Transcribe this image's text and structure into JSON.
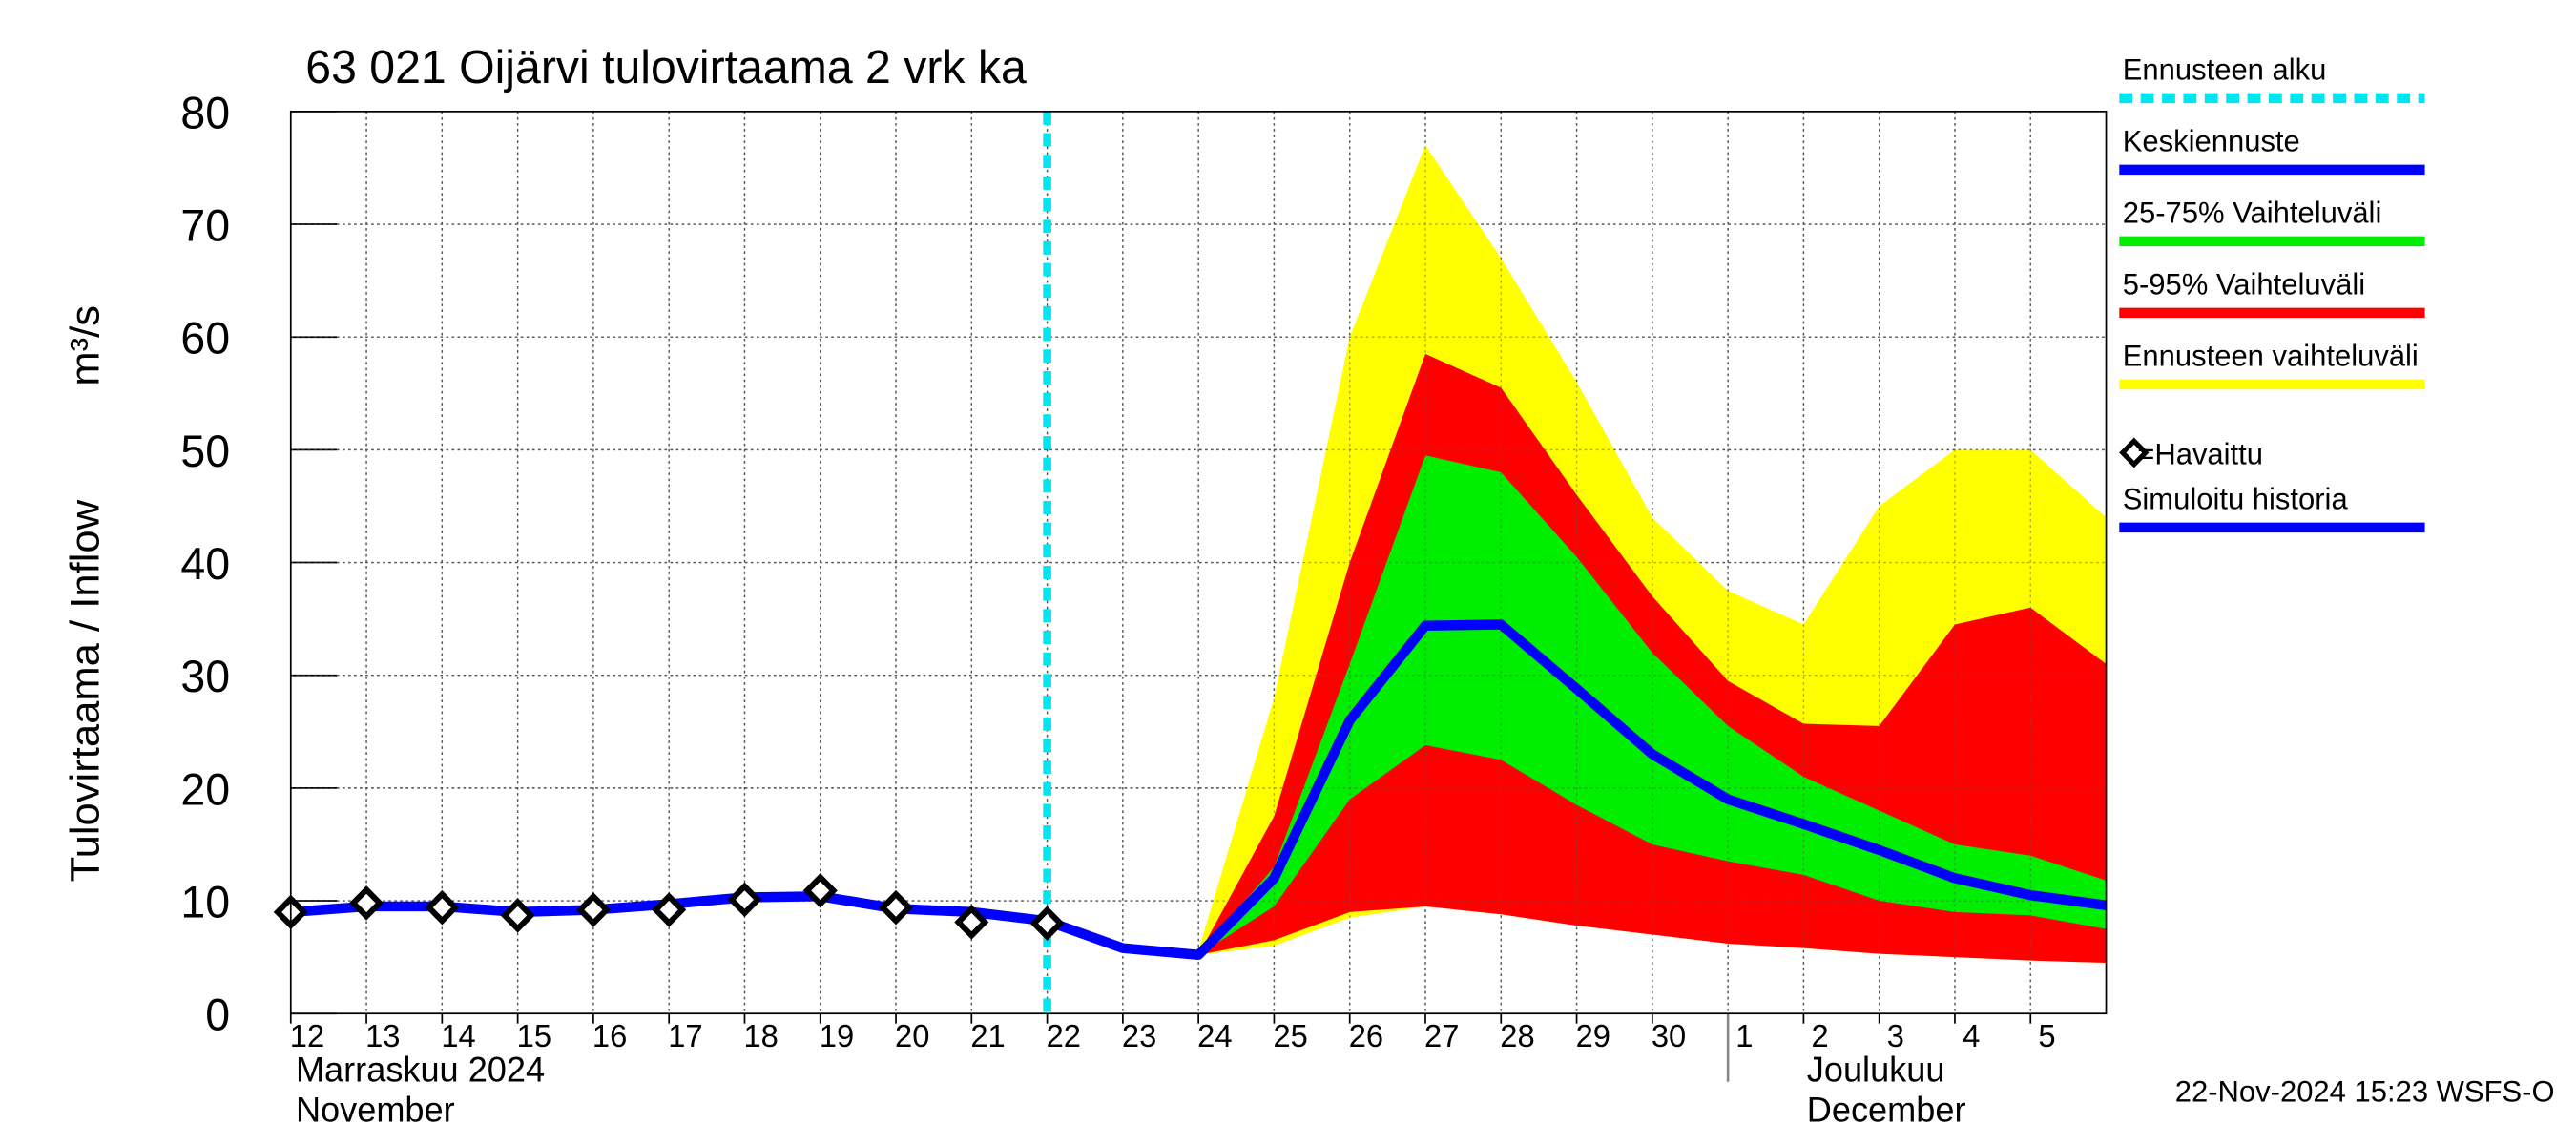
{
  "chart_data": {
    "type": "forecast",
    "title": "63 021 Oijärvi tulovirtaama 2 vrk ka",
    "y_label": "Tulovirtaama / Inflow",
    "y_unit": "m³/s",
    "x": [
      "2024-11-12",
      "2024-11-13",
      "2024-11-14",
      "2024-11-15",
      "2024-11-16",
      "2024-11-17",
      "2024-11-18",
      "2024-11-19",
      "2024-11-20",
      "2024-11-21",
      "2024-11-22",
      "2024-11-23",
      "2024-11-24",
      "2024-11-25",
      "2024-11-26",
      "2024-11-27",
      "2024-11-28",
      "2024-11-29",
      "2024-11-30",
      "2024-12-01",
      "2024-12-02",
      "2024-12-03",
      "2024-12-04",
      "2024-12-05",
      "2024-12-06"
    ],
    "xlim": [
      "2024-11-12",
      "2024-12-06"
    ],
    "xticks": [
      {
        "value": "2024-11-12",
        "label": "12"
      },
      {
        "value": "2024-11-13",
        "label": "13"
      },
      {
        "value": "2024-11-14",
        "label": "14"
      },
      {
        "value": "2024-11-15",
        "label": "15"
      },
      {
        "value": "2024-11-16",
        "label": "16"
      },
      {
        "value": "2024-11-17",
        "label": "17"
      },
      {
        "value": "2024-11-18",
        "label": "18"
      },
      {
        "value": "2024-11-19",
        "label": "19"
      },
      {
        "value": "2024-11-20",
        "label": "20"
      },
      {
        "value": "2024-11-21",
        "label": "21"
      },
      {
        "value": "2024-11-22",
        "label": "22"
      },
      {
        "value": "2024-11-23",
        "label": "23"
      },
      {
        "value": "2024-11-24",
        "label": "24"
      },
      {
        "value": "2024-11-25",
        "label": "25"
      },
      {
        "value": "2024-11-26",
        "label": "26"
      },
      {
        "value": "2024-11-27",
        "label": "27"
      },
      {
        "value": "2024-11-28",
        "label": "28"
      },
      {
        "value": "2024-11-29",
        "label": "29"
      },
      {
        "value": "2024-11-30",
        "label": "30"
      },
      {
        "value": "2024-12-01",
        "label": "1"
      },
      {
        "value": "2024-12-02",
        "label": "2"
      },
      {
        "value": "2024-12-03",
        "label": "3"
      },
      {
        "value": "2024-12-04",
        "label": "4"
      },
      {
        "value": "2024-12-05",
        "label": "5"
      }
    ],
    "months": [
      {
        "value": "2024-11-12",
        "label": "Marraskuu 2024",
        "label_en": "November"
      },
      {
        "value": "2024-12-01",
        "label": "Joulukuu",
        "label_en": "December"
      }
    ],
    "ylim": [
      0,
      80
    ],
    "yticks": [
      0,
      10,
      20,
      30,
      40,
      50,
      60,
      70,
      80
    ],
    "grid": true,
    "forecast_start": {
      "name": "Ennusteen alku",
      "x": "2024-11-22",
      "color": "#00e5ee"
    },
    "bands": [
      {
        "name": "Ennusteen vaihteluväli",
        "color": "#ffff00",
        "upper": [
          null,
          null,
          null,
          null,
          null,
          null,
          null,
          null,
          null,
          null,
          8.2,
          6.2,
          5.6,
          28,
          60,
          77,
          67,
          56,
          44,
          37.5,
          34.5,
          45,
          50,
          50,
          44
        ],
        "lower": [
          null,
          null,
          null,
          null,
          null,
          null,
          null,
          null,
          null,
          null,
          8.2,
          5.8,
          5.2,
          6,
          8.5,
          9.5,
          8.8,
          7.8,
          7,
          6.2,
          5.8,
          5.3,
          5,
          4.7,
          4.5
        ]
      },
      {
        "name": "5-95% Vaihteluväli",
        "color": "#ff0000",
        "upper": [
          null,
          null,
          null,
          null,
          null,
          null,
          null,
          null,
          null,
          null,
          8.2,
          5.8,
          5.2,
          17.5,
          40,
          58.5,
          55.5,
          46,
          37,
          29.5,
          25.7,
          25.5,
          34.5,
          36,
          31
        ],
        "lower": [
          null,
          null,
          null,
          null,
          null,
          null,
          null,
          null,
          null,
          null,
          8.2,
          5.8,
          5.2,
          6.5,
          9,
          9.5,
          8.8,
          7.8,
          7,
          6.2,
          5.8,
          5.3,
          5,
          4.7,
          4.5
        ]
      },
      {
        "name": "25-75% Vaihteluväli",
        "color": "#00ee00",
        "upper": [
          null,
          null,
          null,
          null,
          null,
          null,
          null,
          null,
          null,
          null,
          8.2,
          5.8,
          5.2,
          13,
          31,
          49.5,
          48,
          40.5,
          32,
          25.5,
          21,
          18,
          15,
          14,
          11.8
        ],
        "lower": [
          null,
          null,
          null,
          null,
          null,
          null,
          null,
          null,
          null,
          null,
          8.2,
          5.8,
          5.2,
          9.5,
          19,
          23.8,
          22.5,
          18.5,
          15,
          13.5,
          12.3,
          10,
          9,
          8.7,
          7.5
        ]
      }
    ],
    "series": [
      {
        "name": "Simuloitu historia",
        "color": "#0000ff",
        "values": [
          9,
          9.5,
          9.5,
          9,
          9.2,
          9.7,
          10.3,
          10.4,
          9.3,
          9,
          8.2,
          null,
          null,
          null,
          null,
          null,
          null,
          null,
          null,
          null,
          null,
          null,
          null,
          null,
          null
        ]
      },
      {
        "name": "Keskiennuste",
        "color": "#0000ff",
        "values": [
          null,
          null,
          null,
          null,
          null,
          null,
          null,
          null,
          null,
          null,
          8.2,
          5.8,
          5.2,
          12,
          26,
          34.4,
          34.5,
          28.8,
          23,
          19,
          16.8,
          14.5,
          12,
          10.5,
          9.6
        ]
      },
      {
        "name": "=Havaittu",
        "color": "#000000",
        "marker": "diamond",
        "values": [
          9,
          9.8,
          9.4,
          8.7,
          9.2,
          9.2,
          10.1,
          10.9,
          9.4,
          8.1,
          8.0,
          null,
          null,
          null,
          null,
          null,
          null,
          null,
          null,
          null,
          null,
          null,
          null,
          null,
          null
        ]
      }
    ],
    "footer": "22-Nov-2024 15:23 WSFS-O"
  }
}
